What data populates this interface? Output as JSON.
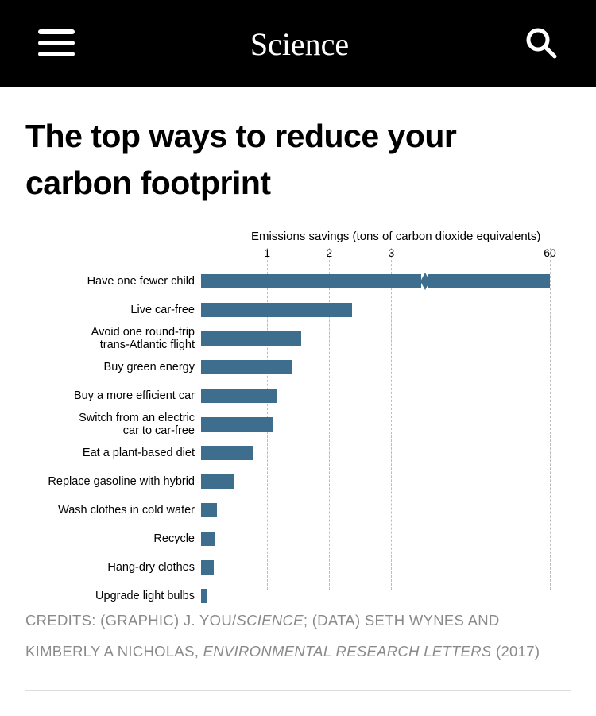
{
  "header": {
    "logo": "Science"
  },
  "article": {
    "title": "The top ways to reduce your carbon footprint"
  },
  "chart": {
    "type": "bar-horizontal-broken-axis",
    "axis_title": "Emissions savings (tons of carbon dioxide equivalents)",
    "bar_color": "#3e6e8e",
    "grid_color": "#bbbbbb",
    "background_color": "#ffffff",
    "label_fontsize": 14.5,
    "tick_fontsize": 14,
    "pre_break_max": 3.5,
    "pre_break_width_pct": 63,
    "break_gap_pct": 2,
    "post_break_label": "60",
    "ticks": [
      1,
      2,
      3
    ],
    "items": [
      {
        "label": "Have one fewer child",
        "value": 60,
        "broken": true
      },
      {
        "label": "Live car-free",
        "value": 2.4
      },
      {
        "label": "Avoid one round-trip\ntrans-Atlantic flight",
        "value": 1.6
      },
      {
        "label": "Buy green energy",
        "value": 1.45
      },
      {
        "label": "Buy a more efficient car",
        "value": 1.2
      },
      {
        "label": "Switch from an electric\ncar to car-free",
        "value": 1.15
      },
      {
        "label": "Eat a plant-based diet",
        "value": 0.82
      },
      {
        "label": "Replace gasoline with hybrid",
        "value": 0.52
      },
      {
        "label": "Wash clothes in cold water",
        "value": 0.25
      },
      {
        "label": "Recycle",
        "value": 0.21
      },
      {
        "label": "Hang-dry clothes",
        "value": 0.2
      },
      {
        "label": "Upgrade light bulbs",
        "value": 0.1
      }
    ]
  },
  "credits": {
    "prefix": "CREDITS: (GRAPHIC) J. YOU/",
    "src1": "SCIENCE",
    "mid": "; (DATA) SETH WYNES AND KIMBERLY A NICHOLAS, ",
    "src2": "ENVIRONMENTAL RESEARCH LETTERS",
    "suffix": " (2017)"
  }
}
